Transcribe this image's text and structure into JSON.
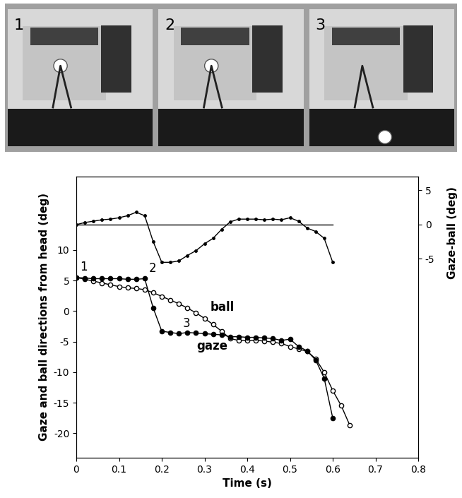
{
  "chart_data": {
    "type": "line",
    "frames": [
      {
        "label": "1",
        "time": 0
      },
      {
        "label": "2",
        "time": 0.16
      },
      {
        "label": "3",
        "time": 0.24
      }
    ],
    "x_label": "Time (s)",
    "y_label": "Gaze and ball directions from head (deg)",
    "y2_label": "Gaze-ball (deg)",
    "xlim": [
      0,
      0.8
    ],
    "xticks": [
      0,
      0.1,
      0.2,
      0.3,
      0.4,
      0.5,
      0.6,
      0.7,
      0.8
    ],
    "ylim": [
      -24,
      22
    ],
    "yticks": [
      -20,
      -15,
      -10,
      -5,
      0,
      5,
      10
    ],
    "y2lim": [
      -34,
      7
    ],
    "y2ticks": [
      -5,
      0,
      5
    ],
    "grid": false,
    "series": [
      {
        "name": "ball",
        "color": "#000000",
        "marker": "open",
        "x": [
          0,
          0.02,
          0.04,
          0.06,
          0.08,
          0.1,
          0.12,
          0.14,
          0.16,
          0.18,
          0.2,
          0.22,
          0.24,
          0.26,
          0.28,
          0.3,
          0.32,
          0.34,
          0.36,
          0.38,
          0.4,
          0.42,
          0.44,
          0.46,
          0.48,
          0.5,
          0.52,
          0.54,
          0.56,
          0.58,
          0.6,
          0.62,
          0.64
        ],
        "values": [
          5.5,
          5.2,
          4.9,
          4.6,
          4.3,
          4.0,
          3.8,
          3.7,
          3.5,
          3.0,
          2.4,
          1.8,
          1.2,
          0.5,
          -0.3,
          -1.2,
          -2.2,
          -3.3,
          -4.5,
          -4.8,
          -4.8,
          -4.8,
          -4.9,
          -5.1,
          -5.3,
          -5.8,
          -6.2,
          -6.6,
          -7.8,
          -10.0,
          -13.0,
          -15.5,
          -18.7
        ]
      },
      {
        "name": "gaze",
        "color": "#000000",
        "marker": "filled",
        "x": [
          0,
          0.02,
          0.04,
          0.06,
          0.08,
          0.1,
          0.12,
          0.14,
          0.16,
          0.18,
          0.2,
          0.22,
          0.24,
          0.26,
          0.28,
          0.3,
          0.32,
          0.34,
          0.36,
          0.38,
          0.4,
          0.42,
          0.44,
          0.46,
          0.48,
          0.5,
          0.52,
          0.54,
          0.56,
          0.58,
          0.6
        ],
        "values": [
          5.5,
          5.4,
          5.3,
          5.3,
          5.3,
          5.3,
          5.2,
          5.2,
          5.3,
          0.5,
          -3.3,
          -3.5,
          -3.7,
          -3.5,
          -3.6,
          -3.7,
          -3.8,
          -3.9,
          -4.2,
          -4.2,
          -4.3,
          -4.3,
          -4.4,
          -4.5,
          -4.8,
          -4.6,
          -5.8,
          -6.5,
          -8.0,
          -11.0,
          -17.5
        ]
      },
      {
        "axis": "y2",
        "color": "#000000",
        "marker": "small",
        "x": [
          0,
          0.02,
          0.04,
          0.06,
          0.08,
          0.1,
          0.12,
          0.14,
          0.16,
          0.18,
          0.2,
          0.22,
          0.24,
          0.26,
          0.28,
          0.3,
          0.32,
          0.34,
          0.36,
          0.38,
          0.4,
          0.42,
          0.44,
          0.46,
          0.48,
          0.5,
          0.52,
          0.54,
          0.56,
          0.58,
          0.6
        ],
        "values": [
          0,
          0.3,
          0.5,
          0.7,
          0.8,
          1.0,
          1.3,
          1.8,
          1.3,
          -2.5,
          -5.5,
          -5.5,
          -5.3,
          -4.5,
          -3.8,
          -2.8,
          -2.0,
          -0.7,
          0.4,
          0.8,
          0.8,
          0.8,
          0.7,
          0.8,
          0.7,
          1.0,
          0.5,
          -0.5,
          -1.0,
          -2.0,
          -5.5
        ]
      }
    ]
  }
}
